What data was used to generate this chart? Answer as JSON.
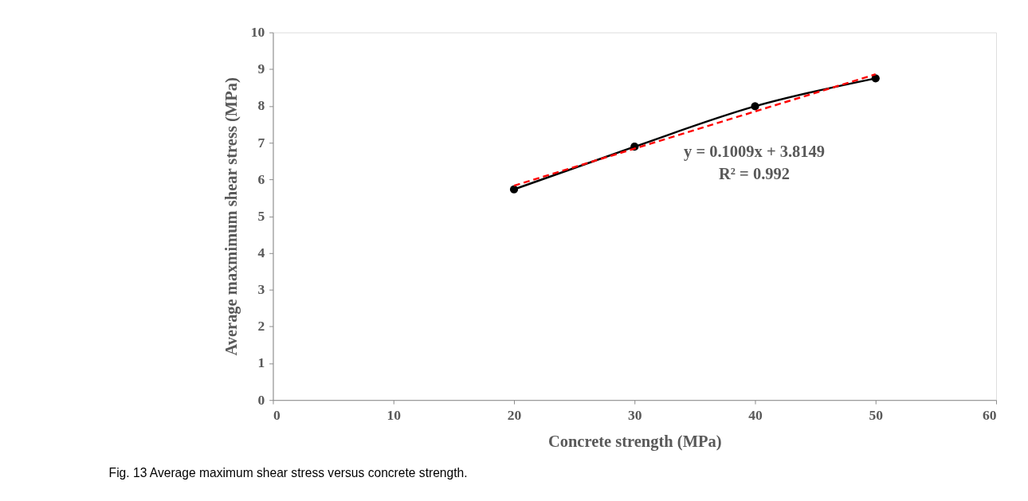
{
  "chart_data": {
    "type": "line",
    "xlabel": "Concrete strength (MPa)",
    "ylabel": "Average maxmimum  shear stress (MPa)",
    "x": [
      20,
      30,
      40,
      50
    ],
    "series": [
      {
        "color": "#000000",
        "values": [
          5.73,
          6.89,
          7.99,
          8.75
        ],
        "marker": "circle",
        "line_style": "solid"
      },
      {
        "type": "line",
        "x": [
          20,
          50
        ],
        "color": "#ff0000",
        "values": [
          5.83,
          8.86
        ],
        "marker": "none",
        "line_style": "dashed"
      }
    ],
    "xlim": [
      0,
      60
    ],
    "xticks": [
      0,
      10,
      20,
      30,
      40,
      50,
      60
    ],
    "ylim": [
      0,
      10
    ],
    "yticks": [
      0,
      1,
      2,
      3,
      4,
      5,
      6,
      7,
      8,
      9,
      10
    ],
    "grid": false,
    "annotations": [
      "y = 0.1009x + 3.8149",
      "R² = 0.992",
      "Fig. 13  Average maximum shear stress versus concrete strength."
    ]
  }
}
